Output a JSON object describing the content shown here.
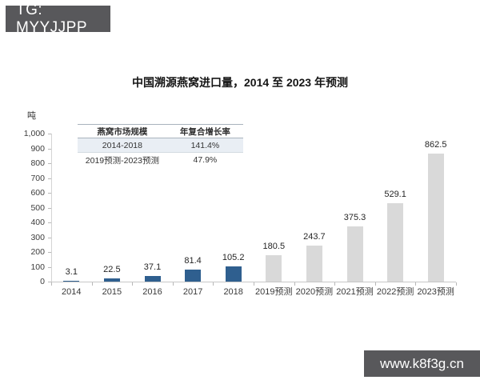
{
  "watermarks": {
    "top_left": {
      "text": "TG: MYYJJPP",
      "bg_color": "#58585b",
      "text_color": "#ffffff"
    },
    "bottom_right": {
      "text": "www.k8f3g.cn",
      "bg_color": "#58585b",
      "text_color": "#ffffff"
    }
  },
  "chart_data": {
    "type": "bar",
    "title": "中国溯源燕窝进口量，2014 至 2023 年预测",
    "ylabel": "吨",
    "xlabel": "",
    "categories": [
      "2014",
      "2015",
      "2016",
      "2017",
      "2018",
      "2019预测",
      "2020预测",
      "2021预测",
      "2022预测",
      "2023预测"
    ],
    "values": [
      3.1,
      22.5,
      37.1,
      81.4,
      105.2,
      180.5,
      243.7,
      375.3,
      529.1,
      862.5
    ],
    "data_labels": [
      "3.1",
      "22.5",
      "37.1",
      "81.4",
      "105.2",
      "180.5",
      "243.7",
      "375.3",
      "529.1",
      "862.5"
    ],
    "actual_count": 5,
    "colors": {
      "actual_bar": "#2f5f8f",
      "forecast_bar": "#d9d9d9"
    },
    "ylim": [
      0,
      1000
    ],
    "ytick_step": 100,
    "ytick_labels": [
      "1,000",
      "900",
      "800",
      "700",
      "600",
      "500",
      "400",
      "300",
      "200",
      "100",
      "0"
    ],
    "grid": false,
    "legend_position": "none",
    "inset_table": {
      "headers": [
        "燕窝市场规模",
        "年复合增长率"
      ],
      "rows": [
        [
          "2014-2018",
          "141.4%"
        ],
        [
          "2019预测-2023预测",
          "47.9%"
        ]
      ],
      "highlight_row_bg": "#e9eef4"
    }
  }
}
